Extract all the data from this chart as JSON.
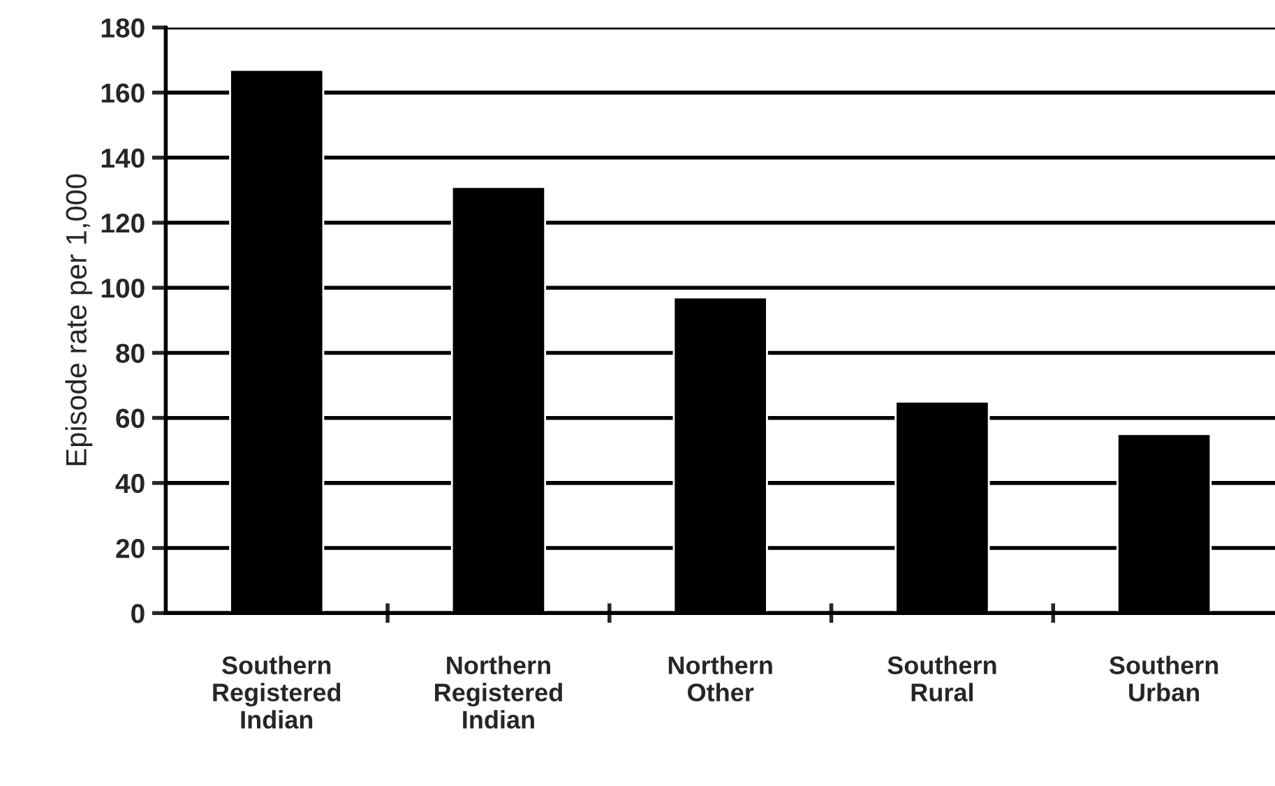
{
  "chart_data": {
    "type": "bar",
    "ylabel": "Episode rate per 1,000",
    "categories": [
      "Southern\nRegistered\nIndian",
      "Northern\nRegistered\nIndian",
      "Northern\nOther",
      "Southern\nRural",
      "Southern\nUrban"
    ],
    "values": [
      167,
      131,
      97,
      65,
      55
    ],
    "color": "#000000",
    "ylim": [
      0,
      180
    ],
    "yticks": [
      0,
      20,
      40,
      60,
      80,
      100,
      120,
      140,
      160,
      180
    ],
    "grid": "y"
  }
}
